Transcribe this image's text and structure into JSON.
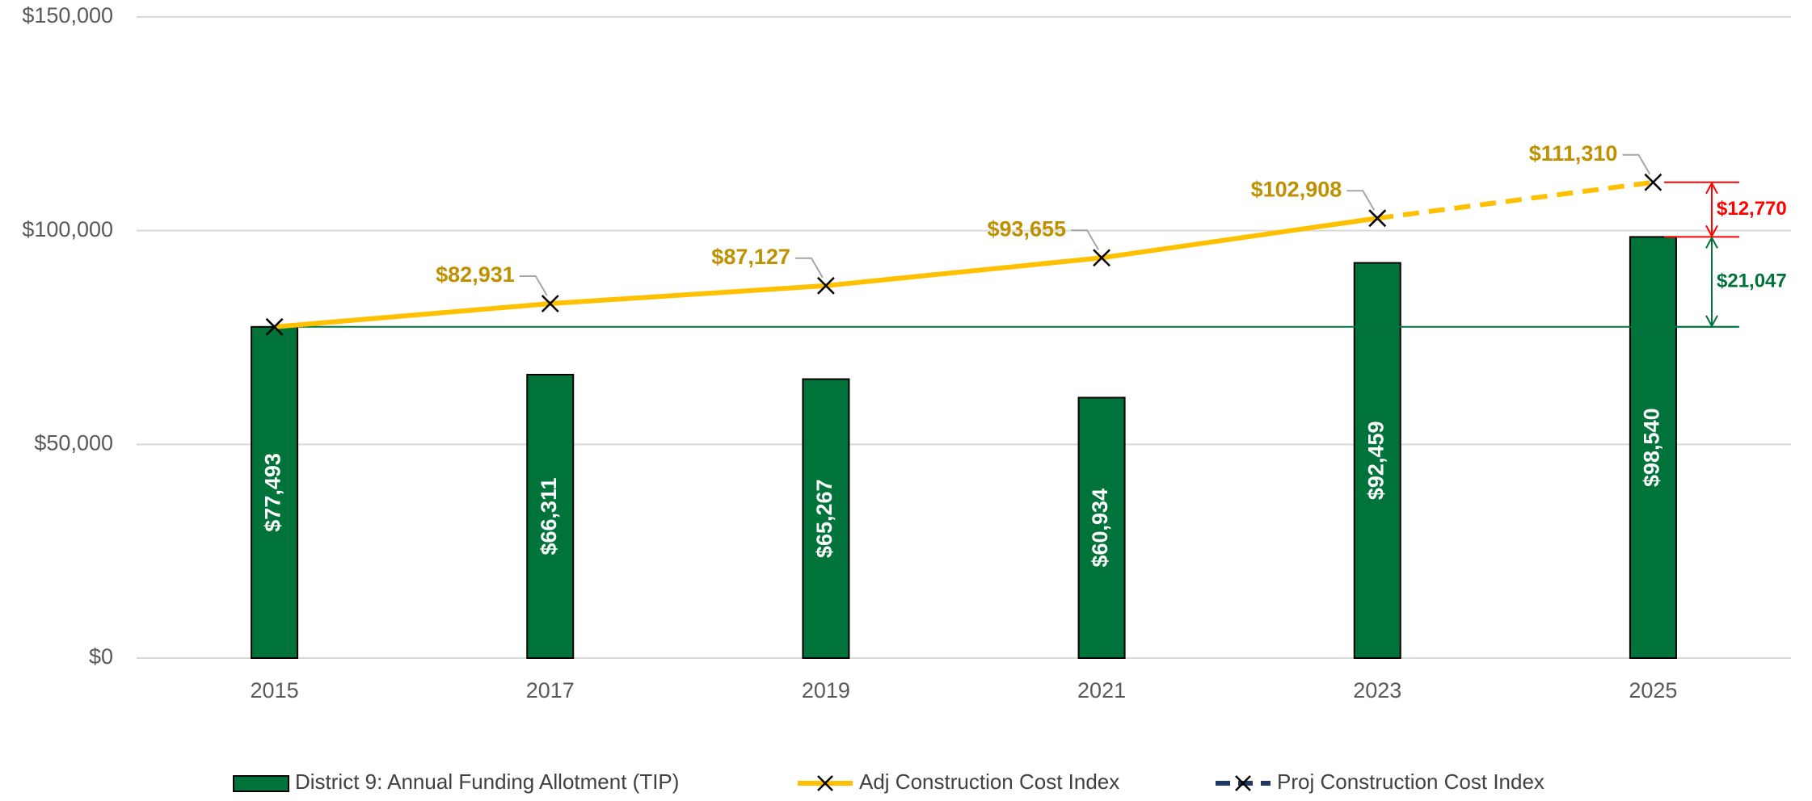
{
  "chart_data": {
    "type": "bar_line",
    "categories": [
      "2015",
      "2017",
      "2019",
      "2021",
      "2023",
      "2025"
    ],
    "ylim": [
      0,
      150000
    ],
    "yticks": [
      {
        "value": 0,
        "label": "$0"
      },
      {
        "value": 50000,
        "label": "$50,000"
      },
      {
        "value": 100000,
        "label": "$100,000"
      },
      {
        "value": 150000,
        "label": "$150,000"
      }
    ],
    "grid": true,
    "legend": "bottom",
    "series": [
      {
        "name": "District 9: Annual Funding Allotment (TIP)",
        "type": "bar",
        "color": "#00733a",
        "values": [
          77493,
          66311,
          65267,
          60934,
          92459,
          98540
        ],
        "value_labels": [
          "$77,493",
          "$66,311",
          "$65,267",
          "$60,934",
          "$92,459",
          "$98,540"
        ]
      },
      {
        "name": "Adj Construction Cost Index",
        "type": "line",
        "color": "#ffc000",
        "label_color": "#bf9000",
        "values": [
          77493,
          82931,
          87127,
          93655,
          102908,
          null
        ],
        "value_labels": [
          null,
          "$82,931",
          "$87,127",
          "$93,655",
          "$102,908",
          null
        ]
      },
      {
        "name": "Proj Construction Cost Index",
        "type": "line",
        "dashed": true,
        "color": "#ffc000",
        "legend_color": "#1f3864",
        "label_color": "#bf9000",
        "values": [
          null,
          null,
          null,
          null,
          102908,
          111310
        ],
        "value_labels": [
          null,
          null,
          null,
          null,
          null,
          "$111,310"
        ]
      }
    ],
    "annotations": [
      {
        "value": 12770,
        "label": "$12,770",
        "color": "#ff0000"
      },
      {
        "value": 21047,
        "label": "$21,047",
        "color": "#00733a"
      }
    ]
  }
}
